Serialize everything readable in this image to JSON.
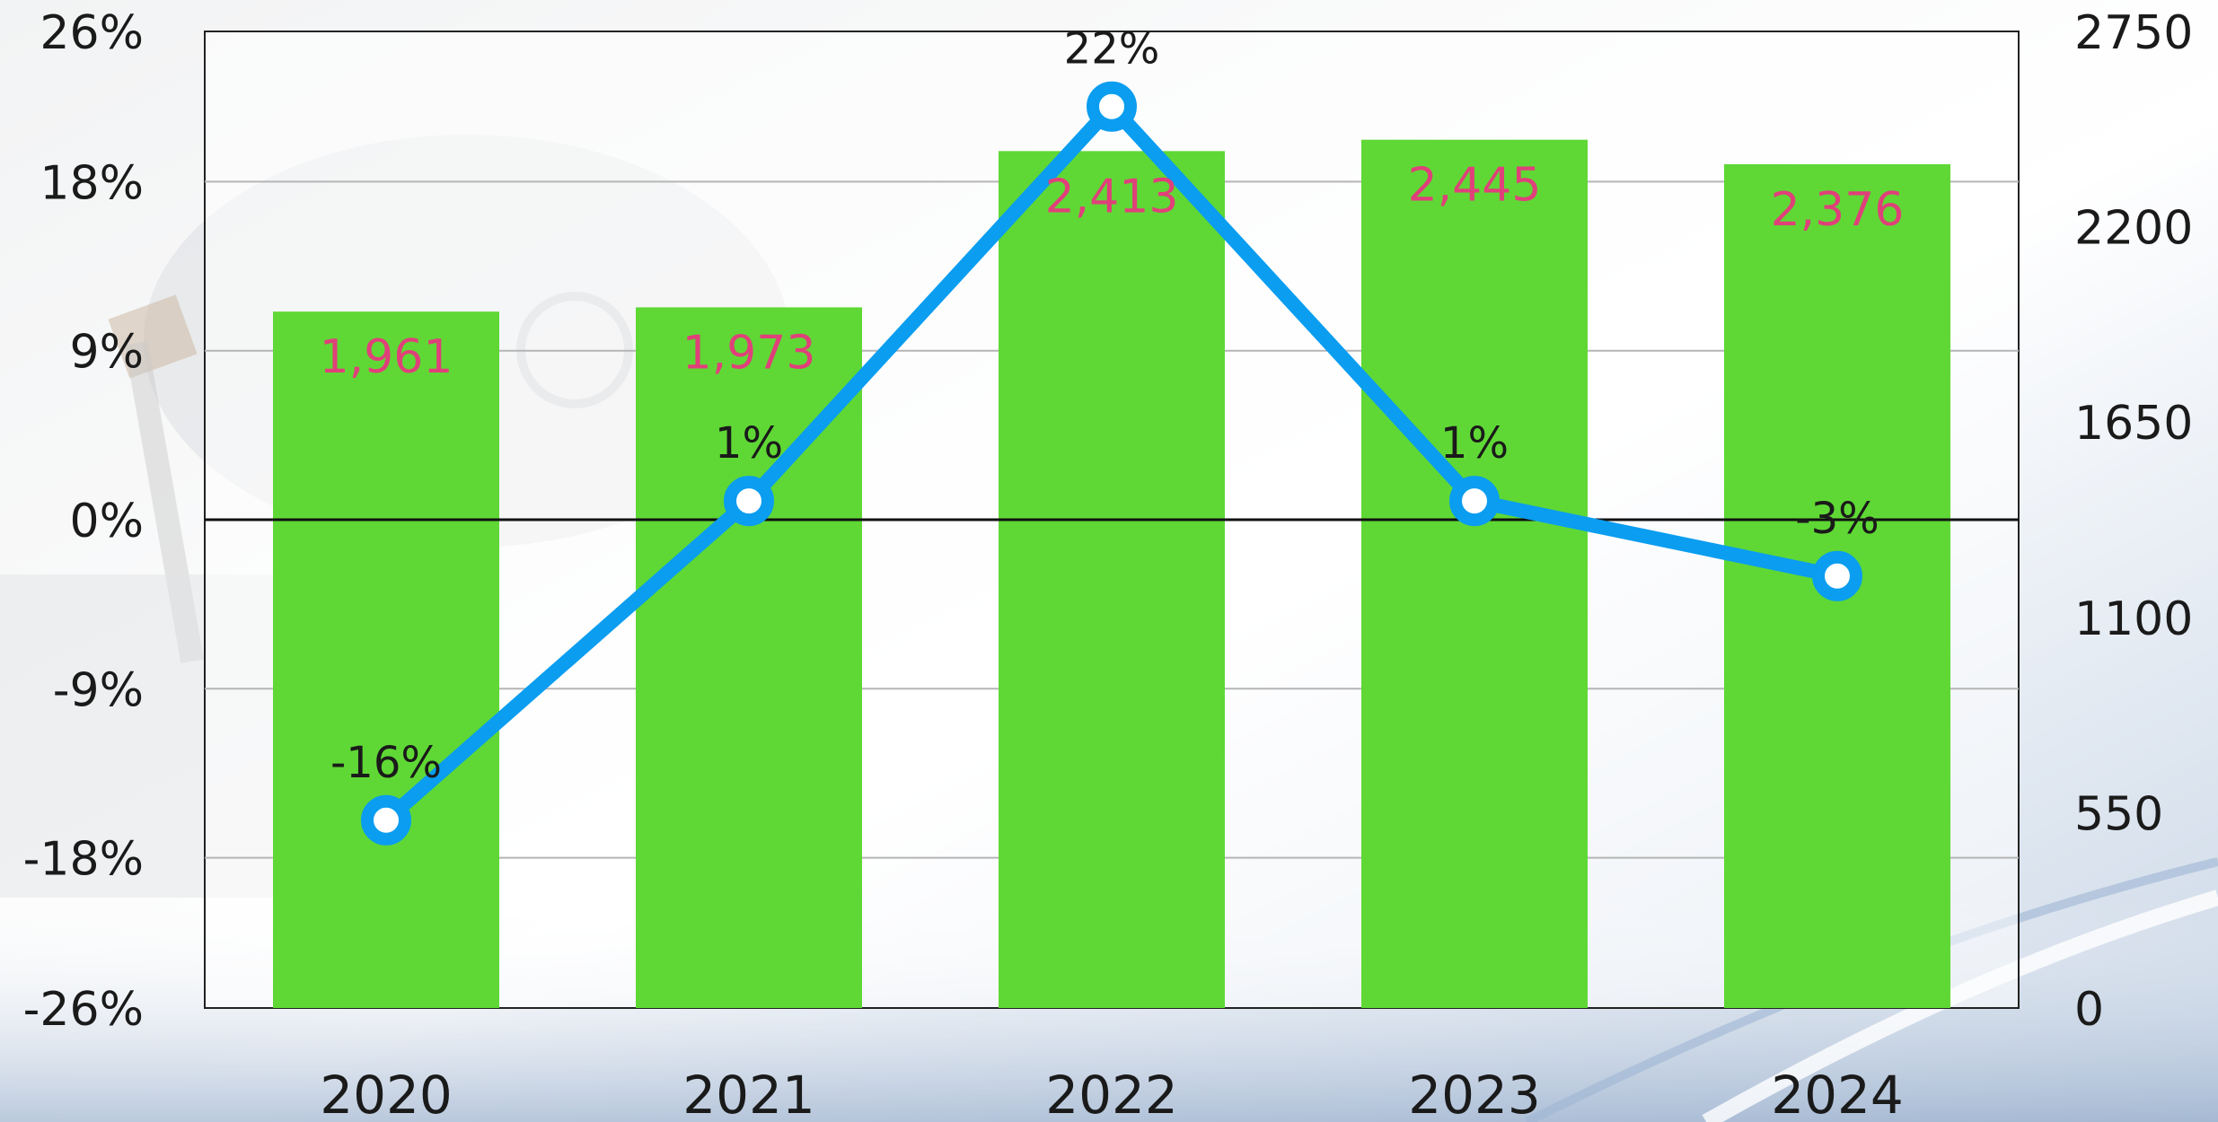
{
  "colors": {
    "bar": "#5fd835",
    "line": "#0a9df0",
    "bar_label": "#e0407a",
    "grid": "#b5b5b5",
    "axis": "#111111"
  },
  "chart_data": {
    "type": "bar",
    "categories": [
      "2020",
      "2021",
      "2022",
      "2023",
      "2024"
    ],
    "bar_values": [
      1961,
      1973,
      2413,
      2445,
      2376
    ],
    "bar_labels": [
      "1,961",
      "1,973",
      "2,413",
      "2,445",
      "2,376"
    ],
    "line_values": [
      -16,
      1,
      22,
      1,
      -3
    ],
    "line_labels": [
      "-16%",
      "1%",
      "22%",
      "1%",
      "-3%"
    ],
    "left_axis": {
      "ticks": [
        "26%",
        "18%",
        "9%",
        "0%",
        "-9%",
        "-18%",
        "-26%"
      ],
      "tick_values": [
        26,
        18,
        9,
        0,
        -9,
        -18,
        -26
      ],
      "ylim": [
        -26,
        26
      ]
    },
    "right_axis": {
      "ticks": [
        "2750",
        "2200",
        "1650",
        "1100",
        "550",
        "0"
      ],
      "tick_values": [
        2750,
        2200,
        1650,
        1100,
        550,
        0
      ],
      "ylim": [
        0,
        2750
      ]
    },
    "grid": true,
    "legend": "none",
    "title": "",
    "xlabel": "",
    "ylabel": ""
  }
}
